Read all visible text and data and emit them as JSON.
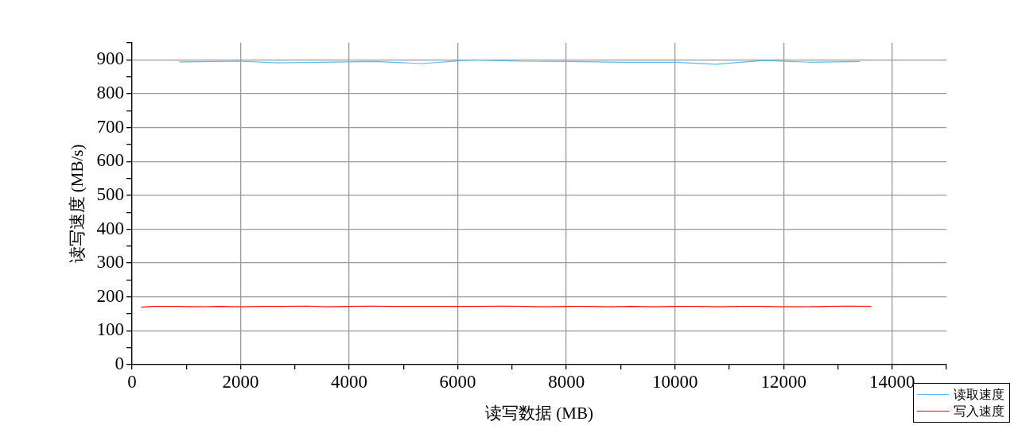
{
  "chart_data": {
    "type": "line",
    "xlabel": "读写数据 (MB)",
    "ylabel": "读写速度 (MB/s)",
    "xlim": [
      0,
      15000
    ],
    "ylim": [
      0,
      950
    ],
    "xticks": [
      0,
      {
        "value": 1000,
        "label": null
      },
      2000,
      {
        "value": 3000,
        "label": null
      },
      4000,
      {
        "value": 5000,
        "label": null
      },
      6000,
      {
        "value": 7000,
        "label": null
      },
      8000,
      {
        "value": 9000,
        "label": null
      },
      10000,
      {
        "value": 11000,
        "label": null
      },
      12000,
      {
        "value": 13000,
        "label": null
      },
      14000,
      {
        "value": 15000,
        "label": null
      }
    ],
    "yticks": [
      0,
      {
        "value": 50,
        "label": null
      },
      100,
      {
        "value": 150,
        "label": null
      },
      200,
      {
        "value": 250,
        "label": null
      },
      300,
      {
        "value": 350,
        "label": null
      },
      400,
      {
        "value": 450,
        "label": null
      },
      500,
      {
        "value": 550,
        "label": null
      },
      600,
      {
        "value": 650,
        "label": null
      },
      700,
      {
        "value": 750,
        "label": null
      },
      800,
      {
        "value": 850,
        "label": null
      },
      900,
      {
        "value": 950,
        "label": null
      }
    ],
    "grid": true,
    "legend": "bottom right",
    "marker": "none",
    "line_style": "solid",
    "series": [
      {
        "name": "读取速度",
        "color": "#55bbf0",
        "x": [
          880,
          2000,
          2670,
          4000,
          4470,
          5350,
          6000,
          6270,
          7130,
          8070,
          9000,
          10000,
          10750,
          11630,
          12500,
          13400
        ],
        "values": [
          894,
          896,
          891,
          894,
          895,
          889,
          897,
          900,
          896,
          895,
          893,
          893,
          887,
          898,
          893,
          895
        ]
      },
      {
        "name": "写入速度",
        "color": "#ff0000",
        "x": [
          176,
          400,
          800,
          1200,
          1600,
          2000,
          2400,
          2800,
          3200,
          3600,
          4000,
          4400,
          4800,
          5200,
          5600,
          6000,
          6400,
          6800,
          7200,
          7600,
          8000,
          8400,
          8800,
          9200,
          9600,
          10000,
          10400,
          10800,
          11200,
          11600,
          12000,
          12400,
          12800,
          13200,
          13608
        ],
        "values": [
          170,
          172,
          172,
          171,
          172,
          171,
          172,
          172,
          173,
          171,
          172,
          173,
          172,
          172,
          172,
          172,
          172,
          173,
          172,
          171,
          172,
          172,
          171,
          172,
          171,
          172,
          172,
          171,
          172,
          172,
          171,
          171,
          172,
          173,
          172
        ]
      }
    ]
  }
}
